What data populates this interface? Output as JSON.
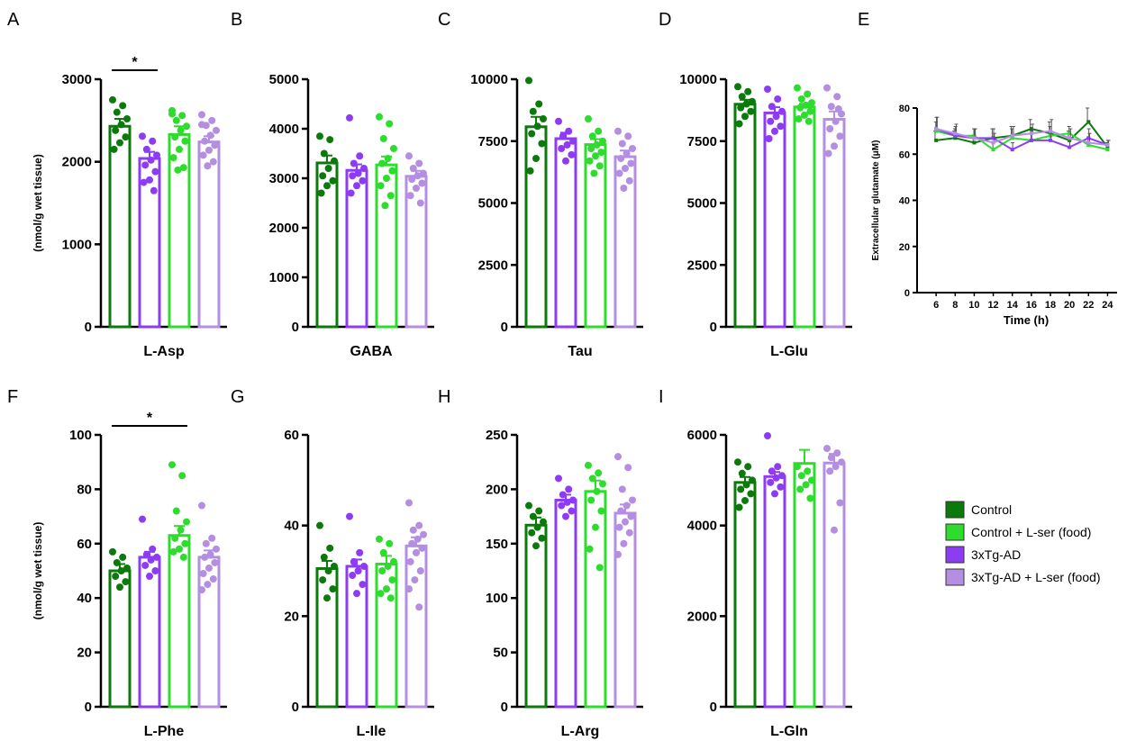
{
  "figure": {
    "legend": [
      {
        "label": "Control",
        "color": "#0b7a0b"
      },
      {
        "label": "Control + L-ser (food)",
        "color": "#2ddc2d"
      },
      {
        "label": "3xTg-AD",
        "color": "#8e3cf4"
      },
      {
        "label": "3xTg-AD + L-ser (food)",
        "color": "#b48ee0"
      }
    ],
    "y_axis_label": "(nmol/g wet tissue)"
  },
  "chart_data": [
    {
      "panel": "A",
      "type": "bar",
      "xlabel": "L-Asp",
      "ylabel": "(nmol/g wet tissue)",
      "ylim": [
        0,
        3000
      ],
      "yticks": [
        0,
        1000,
        2000,
        3000
      ],
      "means": [
        2430,
        2040,
        2330,
        2240
      ],
      "sem": [
        90,
        80,
        100,
        70
      ],
      "points": [
        [
          2750,
          2680,
          2600,
          2520,
          2450,
          2380,
          2300,
          2230,
          2150
        ],
        [
          2310,
          2250,
          2150,
          2080,
          2020,
          1960,
          1880,
          1780,
          1750,
          1650
        ],
        [
          2620,
          2560,
          2500,
          2430,
          2380,
          2300,
          2250,
          2150,
          2050,
          1930,
          1900,
          2580
        ],
        [
          2570,
          2500,
          2440,
          2380,
          2320,
          2250,
          2200,
          2140,
          2080,
          2000,
          1950,
          2450
        ]
      ],
      "significance": [
        {
          "from": 0,
          "to": 1,
          "label": "*"
        }
      ]
    },
    {
      "panel": "B",
      "type": "bar",
      "xlabel": "GABA",
      "ylabel": "",
      "ylim": [
        0,
        5000
      ],
      "yticks": [
        0,
        1000,
        2000,
        3000,
        4000,
        5000
      ],
      "means": [
        3310,
        3160,
        3270,
        3040
      ],
      "sem": [
        150,
        120,
        170,
        110
      ],
      "points": [
        [
          3850,
          3780,
          3500,
          3350,
          3200,
          3050,
          2950,
          2850,
          2700
        ],
        [
          4220,
          3450,
          3300,
          3200,
          3100,
          3050,
          2950,
          2850,
          2700
        ],
        [
          4240,
          4100,
          3800,
          3600,
          3400,
          3300,
          3150,
          3000,
          2850,
          2650,
          2450
        ],
        [
          3450,
          3300,
          3200,
          3100,
          3050,
          2980,
          2900,
          2800,
          2650,
          2500
        ]
      ],
      "significance": []
    },
    {
      "panel": "C",
      "type": "bar",
      "xlabel": "Tau",
      "ylabel": "",
      "ylim": [
        0,
        10000
      ],
      "yticks": [
        0,
        2500,
        5000,
        7500,
        10000
      ],
      "means": [
        8080,
        7600,
        7360,
        6870
      ],
      "sem": [
        400,
        240,
        220,
        250
      ],
      "points": [
        [
          9950,
          9000,
          8700,
          8400,
          8100,
          7800,
          7400,
          6800,
          6300
        ],
        [
          8300,
          7900,
          7700,
          7500,
          7350,
          7200,
          6950,
          6700
        ],
        [
          8400,
          7900,
          7700,
          7500,
          7350,
          7200,
          7050,
          6900,
          6700,
          6500,
          6200
        ],
        [
          7900,
          7700,
          7400,
          7200,
          7000,
          6800,
          6600,
          6400,
          6200,
          5900,
          5600
        ]
      ],
      "significance": []
    },
    {
      "panel": "D",
      "type": "bar",
      "xlabel": "L-Glu",
      "ylabel": "",
      "ylim": [
        0,
        10000
      ],
      "yticks": [
        0,
        2500,
        5000,
        7500,
        10000
      ],
      "means": [
        8990,
        8640,
        8880,
        8380
      ],
      "sem": [
        180,
        230,
        130,
        320
      ],
      "points": [
        [
          9700,
          9500,
          9300,
          9100,
          9000,
          8850,
          8700,
          8500,
          8200
        ],
        [
          9600,
          9200,
          8900,
          8700,
          8500,
          8300,
          8100,
          7900,
          7600
        ],
        [
          9650,
          9400,
          9200,
          9050,
          8950,
          8850,
          8700,
          8550,
          8400,
          8300
        ],
        [
          9650,
          9300,
          8900,
          8600,
          8300,
          8000,
          7700,
          7300,
          7000,
          8800
        ]
      ],
      "significance": []
    },
    {
      "panel": "E",
      "type": "line",
      "xlabel": "Time (h)",
      "ylabel": "Extracellular glutamate (μM)",
      "ylim": [
        0,
        80
      ],
      "yticks": [
        0,
        20,
        40,
        60,
        80
      ],
      "xlim": [
        4,
        25
      ],
      "xticks": [
        6,
        8,
        10,
        12,
        14,
        16,
        18,
        20,
        22,
        24
      ],
      "x": [
        6,
        8,
        10,
        12,
        14,
        16,
        18,
        20,
        22,
        24
      ],
      "series": [
        {
          "name": "Control",
          "values": [
            66,
            67,
            65,
            67,
            68,
            71,
            69,
            66,
            74,
            63
          ],
          "err": [
            4,
            3,
            3,
            4,
            4,
            4,
            5,
            4,
            6,
            2
          ]
        },
        {
          "name": "Control + L-ser (food)",
          "values": [
            70,
            68,
            68,
            62,
            67,
            66,
            68,
            69,
            64,
            62
          ],
          "err": [
            4,
            3,
            3,
            3,
            4,
            3,
            4,
            3,
            3,
            2
          ]
        },
        {
          "name": "3xTg-AD",
          "values": [
            71,
            68,
            67,
            67,
            62,
            66,
            66,
            63,
            67,
            64
          ],
          "err": [
            5,
            4,
            4,
            4,
            3,
            4,
            4,
            3,
            4,
            2
          ]
        },
        {
          "name": "3xTg-AD + L-ser (food)",
          "values": [
            71,
            69,
            67,
            65,
            68,
            69,
            70,
            67,
            65,
            64
          ],
          "err": [
            5,
            4,
            4,
            4,
            4,
            4,
            5,
            4,
            4,
            2
          ]
        }
      ]
    },
    {
      "panel": "F",
      "type": "bar",
      "xlabel": "L-Phe",
      "ylabel": "(nmol/g wet tissue)",
      "ylim": [
        0,
        100
      ],
      "yticks": [
        0,
        20,
        40,
        60,
        80,
        100
      ],
      "means": [
        50,
        55,
        63,
        55
      ],
      "sem": [
        2.5,
        2,
        3.5,
        2.5
      ],
      "points": [
        [
          57,
          55,
          53,
          51,
          50,
          48,
          46,
          44
        ],
        [
          69,
          58,
          56,
          55,
          54,
          52,
          50,
          48
        ],
        [
          89,
          85,
          72,
          68,
          65,
          62,
          60,
          58,
          57,
          55
        ],
        [
          74,
          62,
          60,
          58,
          56,
          55,
          53,
          51,
          49,
          47,
          45,
          43
        ]
      ],
      "significance": [
        {
          "from": 0,
          "to": 2,
          "label": "*"
        }
      ]
    },
    {
      "panel": "G",
      "type": "bar",
      "xlabel": "L-Ile",
      "ylabel": "",
      "ylim": [
        0,
        60
      ],
      "yticks": [
        0,
        20,
        40,
        60
      ],
      "means": [
        30.5,
        31,
        31.5,
        35.5
      ],
      "sem": [
        1.7,
        1.5,
        1.8,
        1.9
      ],
      "points": [
        [
          40,
          35,
          33,
          31,
          30,
          28,
          26,
          24
        ],
        [
          42,
          34,
          32,
          31,
          30,
          29,
          27,
          25
        ],
        [
          37,
          36,
          34,
          32,
          31,
          30,
          28,
          26,
          25,
          24
        ],
        [
          45,
          40,
          39,
          38,
          37,
          36,
          35,
          34,
          32,
          30,
          28,
          26,
          22
        ]
      ],
      "significance": []
    },
    {
      "panel": "H",
      "type": "bar",
      "xlabel": "L-Arg",
      "ylabel": "",
      "ylim": [
        0,
        250
      ],
      "yticks": [
        0,
        50,
        100,
        150,
        200,
        250
      ],
      "means": [
        167,
        190,
        198,
        178
      ],
      "sem": [
        7,
        5,
        10,
        8
      ],
      "points": [
        [
          185,
          180,
          175,
          170,
          165,
          160,
          155,
          148
        ],
        [
          210,
          200,
          195,
          190,
          188,
          185,
          180,
          175
        ],
        [
          222,
          215,
          210,
          205,
          198,
          190,
          180,
          165,
          145,
          128
        ],
        [
          230,
          220,
          200,
          190,
          185,
          180,
          175,
          170,
          165,
          160,
          150,
          140
        ]
      ],
      "significance": []
    },
    {
      "panel": "I",
      "type": "bar",
      "xlabel": "L-Gln",
      "ylabel": "",
      "ylim": [
        0,
        6000
      ],
      "yticks": [
        0,
        2000,
        4000,
        6000
      ],
      "means": [
        4950,
        5080,
        5370,
        5380
      ],
      "sem": [
        120,
        100,
        300,
        200
      ],
      "points": [
        [
          5400,
          5300,
          5150,
          5000,
          4900,
          4800,
          4700,
          4550,
          4400
        ],
        [
          5980,
          5300,
          5200,
          5100,
          5050,
          4950,
          4850,
          4700
        ],
        [
          5300,
          5200,
          5100,
          5000,
          4900,
          4800,
          4600
        ],
        [
          5700,
          5600,
          5500,
          5400,
          5300,
          5200,
          4500,
          3900
        ]
      ],
      "significance": []
    }
  ]
}
